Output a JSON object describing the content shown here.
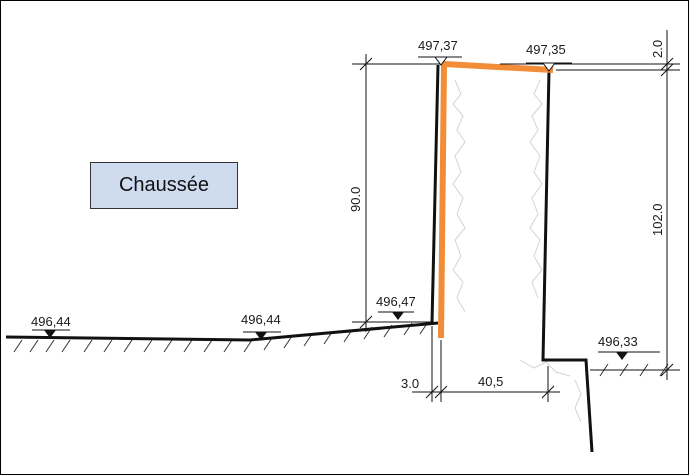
{
  "legend": {
    "label": "Chaussée"
  },
  "elevations": {
    "wall_top_left": "497,37",
    "wall_top_right": "497,35",
    "road_left": "496,44",
    "road_mid": "496,44",
    "road_edge": "496,47",
    "right_ground": "496,33"
  },
  "dimensions": {
    "left_height": "90.0",
    "right_height": "102.0",
    "top_offset": "2.0",
    "bottom_left": "3.0",
    "bottom_width": "40,5"
  },
  "colors": {
    "highlight": "#f28c38",
    "legend_fill": "#cfdcf0",
    "line": "#111111"
  }
}
